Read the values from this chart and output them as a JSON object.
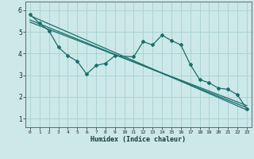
{
  "title": "",
  "xlabel": "Humidex (Indice chaleur)",
  "x_ticks": [
    0,
    1,
    2,
    3,
    4,
    5,
    6,
    7,
    8,
    9,
    10,
    11,
    12,
    13,
    14,
    15,
    16,
    17,
    18,
    19,
    20,
    21,
    22,
    23
  ],
  "y_ticks": [
    1,
    2,
    3,
    4,
    5,
    6
  ],
  "xlim": [
    -0.5,
    23.5
  ],
  "ylim": [
    0.6,
    6.4
  ],
  "bg_color": "#cce8e8",
  "grid_color": "#aad4d4",
  "line_color": "#1a6e6a",
  "series1_x": [
    0,
    1,
    2,
    3,
    4,
    5,
    6,
    7,
    8,
    9,
    11,
    12,
    13,
    14,
    15,
    16,
    17,
    18,
    19,
    20,
    21,
    22,
    23
  ],
  "series1_y": [
    5.8,
    5.4,
    5.05,
    4.3,
    3.9,
    3.65,
    3.05,
    3.45,
    3.55,
    3.9,
    3.85,
    4.55,
    4.4,
    4.85,
    4.6,
    4.4,
    3.5,
    2.8,
    2.65,
    2.4,
    2.35,
    2.1,
    1.45
  ],
  "series2_x": [
    0,
    23
  ],
  "series2_y": [
    5.75,
    1.4
  ],
  "series3_x": [
    0,
    23
  ],
  "series3_y": [
    5.55,
    1.5
  ],
  "series4_x": [
    0,
    23
  ],
  "series4_y": [
    5.45,
    1.6
  ]
}
